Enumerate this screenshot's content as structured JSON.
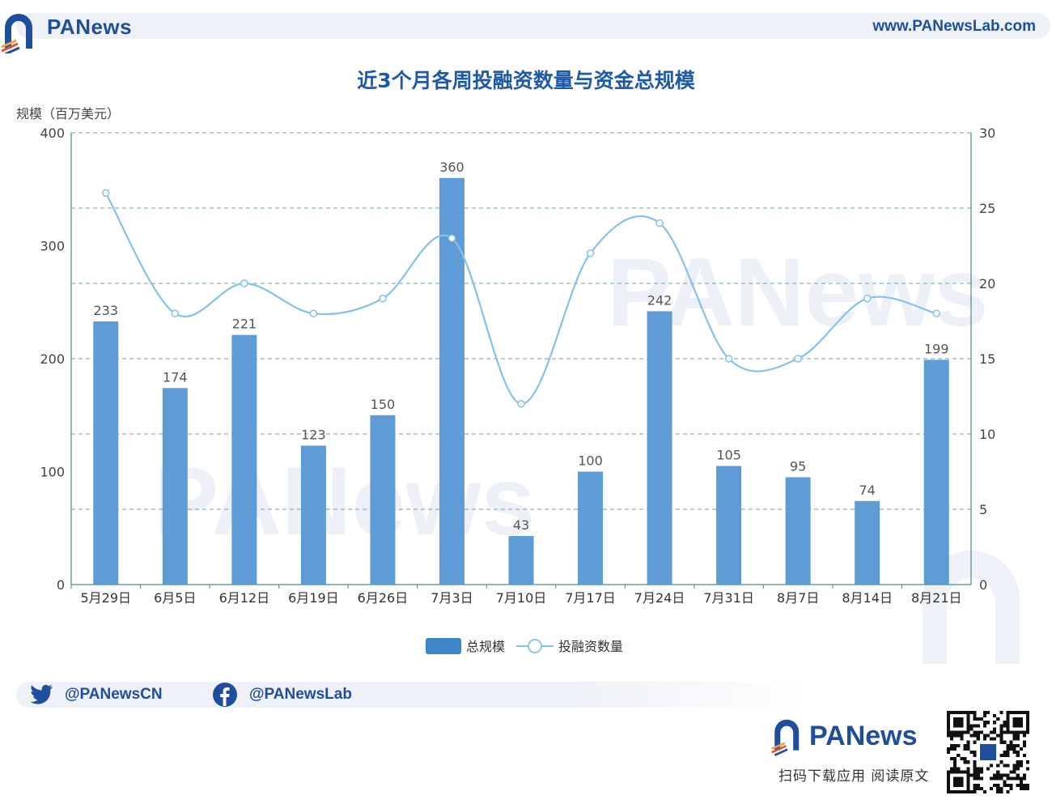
{
  "header": {
    "brand": "PANews",
    "url": "www.PANewsLab.com"
  },
  "chart_data": {
    "type": "bar",
    "title": "近3个月各周投融资数量与资金总规模",
    "ylabel": "规模（百万美元）",
    "categories": [
      "5月29日",
      "6月5日",
      "6月12日",
      "6月19日",
      "6月26日",
      "7月3日",
      "7月10日",
      "7月17日",
      "7月24日",
      "7月31日",
      "8月7日",
      "8月14日",
      "8月21日"
    ],
    "series": [
      {
        "name": "总规模",
        "type": "bar",
        "axis": "left",
        "values": [
          233,
          174,
          221,
          123,
          150,
          360,
          43,
          100,
          242,
          105,
          95,
          74,
          199
        ]
      },
      {
        "name": "投融资数量",
        "type": "line",
        "axis": "right",
        "values": [
          26,
          18,
          20,
          18,
          19,
          23,
          12,
          22,
          24,
          15,
          15,
          19,
          18
        ]
      }
    ],
    "ylim": [
      0,
      400
    ],
    "y_ticks": [
      0,
      100,
      200,
      300,
      400
    ],
    "y2lim": [
      0,
      30
    ],
    "y2_ticks": [
      0,
      5,
      10,
      15,
      20,
      25,
      30
    ],
    "grid": true,
    "legend": "bottom-center",
    "colors": {
      "bar": "#5f9bd4",
      "line": "#86c1ea",
      "grid": "#6fa3a3",
      "axis": "#4e8a8a"
    },
    "watermark": "PANews"
  },
  "social": {
    "twitter": "@PANewsCN",
    "facebook": "@PANewsLab"
  },
  "footer": {
    "brand": "PANews",
    "tagline": "扫码下载应用  阅读原文"
  }
}
